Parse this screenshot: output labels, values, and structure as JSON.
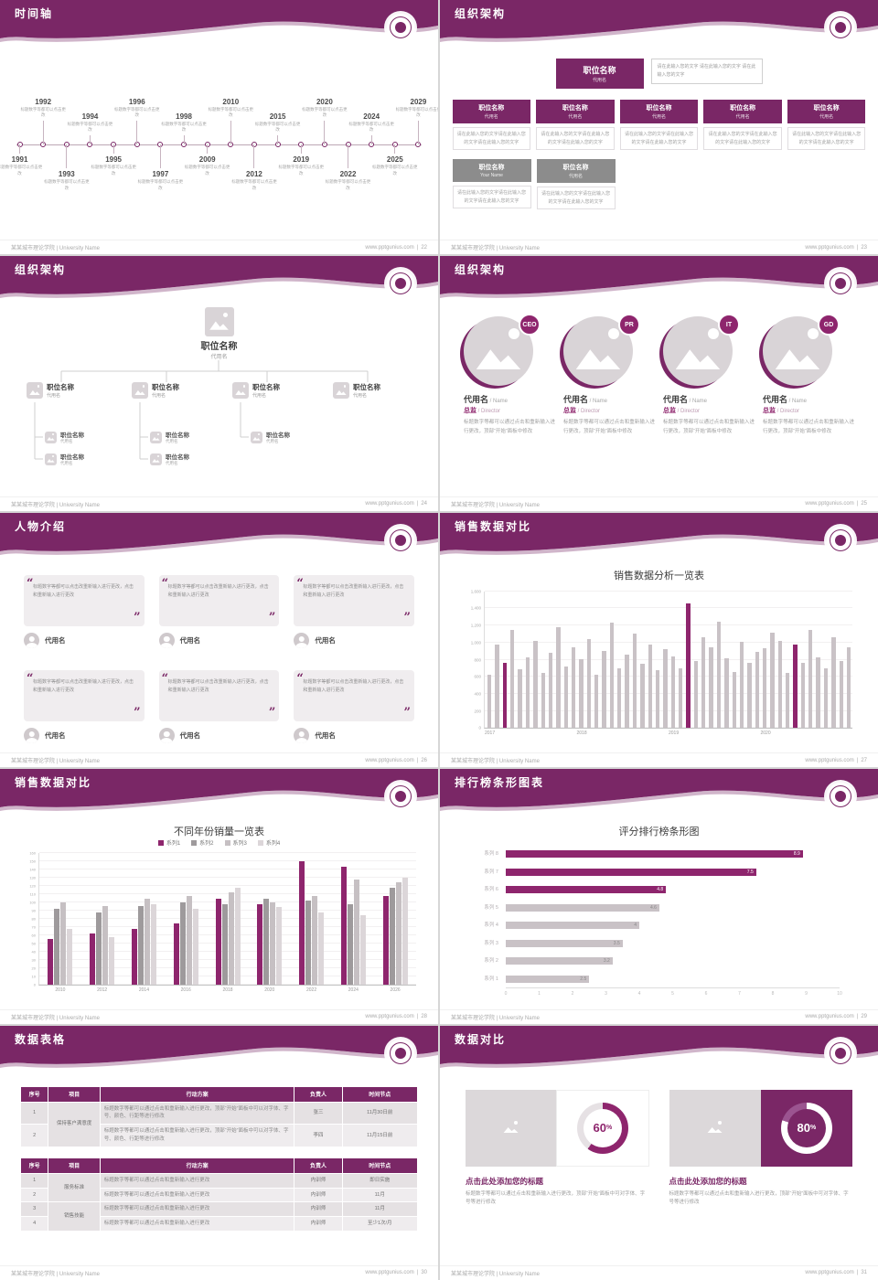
{
  "footer": {
    "org": "某某城市理论学院 | University Name",
    "site": "www.pptgunius.com"
  },
  "colors": {
    "primary": "#7A2766",
    "accent": "#8E256D",
    "bar_gray": "#C9C2C6"
  },
  "slides": {
    "timeline": {
      "title": "时间轴",
      "page": "22",
      "caption": "标题数字等都可以点击更改",
      "items": [
        {
          "year": "1991",
          "side": "bottom",
          "offset": "near"
        },
        {
          "year": "1992",
          "side": "top",
          "offset": "far"
        },
        {
          "year": "1993",
          "side": "bottom",
          "offset": "far"
        },
        {
          "year": "1994",
          "side": "top",
          "offset": "near"
        },
        {
          "year": "1995",
          "side": "bottom",
          "offset": "near"
        },
        {
          "year": "1996",
          "side": "top",
          "offset": "far"
        },
        {
          "year": "1997",
          "side": "bottom",
          "offset": "far"
        },
        {
          "year": "1998",
          "side": "top",
          "offset": "near"
        },
        {
          "year": "2009",
          "side": "bottom",
          "offset": "near"
        },
        {
          "year": "2010",
          "side": "top",
          "offset": "far"
        },
        {
          "year": "2012",
          "side": "bottom",
          "offset": "far"
        },
        {
          "year": "2015",
          "side": "top",
          "offset": "near"
        },
        {
          "year": "2019",
          "side": "bottom",
          "offset": "near"
        },
        {
          "year": "2020",
          "side": "top",
          "offset": "far"
        },
        {
          "year": "2022",
          "side": "bottom",
          "offset": "far"
        },
        {
          "year": "2024",
          "side": "top",
          "offset": "near"
        },
        {
          "year": "2025",
          "side": "bottom",
          "offset": "near"
        },
        {
          "year": "2029",
          "side": "top",
          "offset": "far"
        }
      ]
    },
    "org_boxes": {
      "title": "组织架构",
      "page": "23",
      "top": {
        "title": "职位名称",
        "sub": "代用名"
      },
      "note": "请在此输入您的文字 请在此输入您的文字 请在此输入您的文字",
      "desc": "请在此输入您的文字请在此输入您的文字请在此输入您的文字",
      "level2": [
        {
          "title": "职位名称",
          "sub": "代用名"
        },
        {
          "title": "职位名称",
          "sub": "代用名"
        },
        {
          "title": "职位名称",
          "sub": "代用名"
        },
        {
          "title": "职位名称",
          "sub": "代用名"
        },
        {
          "title": "职位名称",
          "sub": "代用名"
        }
      ],
      "level3": [
        {
          "title": "职位名称",
          "sub": "Your Name"
        },
        {
          "title": "职位名称",
          "sub": "代用名"
        }
      ]
    },
    "org_tree": {
      "title": "组织架构",
      "page": "24",
      "root": {
        "title": "职位名称",
        "sub": "代用名"
      },
      "children": [
        {
          "title": "职位名称",
          "sub": "代用名",
          "grandchildren": [
            {
              "title": "职位名称",
              "sub": "代用名"
            },
            {
              "title": "职位名称",
              "sub": "代用名"
            }
          ]
        },
        {
          "title": "职位名称",
          "sub": "代用名",
          "grandchildren": [
            {
              "title": "职位名称",
              "sub": "代用名"
            },
            {
              "title": "职位名称",
              "sub": "代用名"
            }
          ]
        },
        {
          "title": "职位名称",
          "sub": "代用名",
          "grandchildren": [
            {
              "title": "职位名称",
              "sub": "代用名"
            }
          ]
        },
        {
          "title": "职位名称",
          "sub": "代用名",
          "grandchildren": []
        }
      ]
    },
    "org_profiles": {
      "title": "组织架构",
      "page": "25",
      "caption": "标题数字等都可以通过点击和重新输入进行更改，顶部“开始”面板中修改",
      "people": [
        {
          "badge": "CEO",
          "name": "代用名",
          "name_en": "Name",
          "role": "总监",
          "role_en": "Director"
        },
        {
          "badge": "PR",
          "name": "代用名",
          "name_en": "Name",
          "role": "总监",
          "role_en": "Director"
        },
        {
          "badge": "IT",
          "name": "代用名",
          "name_en": "Name",
          "role": "总监",
          "role_en": "Director"
        },
        {
          "badge": "GD",
          "name": "代用名",
          "name_en": "Name",
          "role": "总监",
          "role_en": "Director"
        }
      ]
    },
    "people_intro": {
      "title": "人物介绍",
      "page": "26",
      "quote": "标题数字等都可以点击改重新输入进行更改，点击和重新输入进行更改",
      "people": [
        {
          "name": "代用名"
        },
        {
          "name": "代用名"
        },
        {
          "name": "代用名"
        },
        {
          "name": "代用名"
        },
        {
          "name": "代用名"
        },
        {
          "name": "代用名"
        }
      ]
    },
    "sales_trend": {
      "title": "销售数据对比",
      "page": "27"
    },
    "sales_yearly": {
      "title": "销售数据对比",
      "page": "28"
    },
    "ranking": {
      "title": "排行榜条形图表",
      "page": "29"
    },
    "data_table": {
      "title": "数据表格",
      "page": "30",
      "tables": [
        {
          "headers": [
            "序号",
            "项目",
            "行动方案",
            "负责人",
            "时间节点"
          ],
          "col_widths": [
            "7%",
            "13%",
            "49%",
            "12%",
            "19%"
          ],
          "rows": [
            [
              {
                "t": "1"
              },
              {
                "t": "保持客户满意度",
                "rs": 2
              },
              {
                "t": "标题数字等都可以通过点击和重新输入进行更改，顶部“开始”面板中可以对字体、字号、颜色、行距等进行修改",
                "align": "left"
              },
              {
                "t": "张三"
              },
              {
                "t": "11月30日前"
              }
            ],
            [
              {
                "t": "2"
              },
              {
                "t": "标题数字等都可以通过点击和重新输入进行更改，顶部“开始”面板中可以对字体、字号、颜色、行距等进行修改",
                "align": "left"
              },
              {
                "t": "李四"
              },
              {
                "t": "11月15日前"
              }
            ]
          ]
        },
        {
          "headers": [
            "序号",
            "项目",
            "行动方案",
            "负责人",
            "时间节点"
          ],
          "col_widths": [
            "7%",
            "13%",
            "49%",
            "12%",
            "19%"
          ],
          "rows": [
            [
              {
                "t": "1"
              },
              {
                "t": "服务标准",
                "rs": 2
              },
              {
                "t": "标题数字等都可以通过点击和重新输入进行更改",
                "align": "left"
              },
              {
                "t": "内训师"
              },
              {
                "t": "即日实施"
              }
            ],
            [
              {
                "t": "2"
              },
              {
                "t": "标题数字等都可以通过点击和重新输入进行更改",
                "align": "left"
              },
              {
                "t": "内训师"
              },
              {
                "t": "11月"
              }
            ],
            [
              {
                "t": "3"
              },
              {
                "t": "销售技能",
                "rs": 2
              },
              {
                "t": "标题数字等都可以通过点击和重新输入进行更改",
                "align": "left"
              },
              {
                "t": "内训师"
              },
              {
                "t": "11月"
              }
            ],
            [
              {
                "t": "4"
              },
              {
                "t": "标题数字等都可以通过点击和重新输入进行更改",
                "align": "left"
              },
              {
                "t": "内训师"
              },
              {
                "t": "至少1次/月"
              }
            ]
          ]
        }
      ]
    },
    "data_compare": {
      "title": "数据对比",
      "page": "31",
      "cards": [
        {
          "percent": 60,
          "unit": "%",
          "heading": "点击此处添加您的标题",
          "caption": "标题数字等都可以通过点击和重新输入进行更改，顶部“开始”面板中可对字体、字号等进行修改",
          "accent": "#8E256D",
          "track": "#E6E1E4",
          "hole": "#FFFFFF",
          "label_color": "#8E256D",
          "area_bg": "#FFFFFF"
        },
        {
          "percent": 80,
          "unit": "%",
          "heading": "点击此处添加您的标题",
          "caption": "标题数字等都可以通过点击和重新输入进行更改，顶部“开始”面板中可对字体、字号等进行修改",
          "accent": "#FFFFFF",
          "track": "#A express",
          "hole": "#7A2766",
          "label_color": "#FFFFFF",
          "area_bg": "#7A2766"
        }
      ]
    }
  },
  "chart_data": [
    {
      "id": "sales_trend",
      "type": "bar",
      "title": "销售数据分析一览表",
      "x_groups": [
        "2017",
        "2018",
        "2019",
        "2020"
      ],
      "bars_per_group": 12,
      "values": [
        620,
        980,
        760,
        1150,
        690,
        830,
        1020,
        640,
        880,
        1180,
        720,
        940,
        810,
        1040,
        620,
        900,
        1230,
        700,
        860,
        1100,
        750,
        980,
        680,
        920,
        840,
        700,
        1460,
        780,
        1060,
        950,
        1240,
        820,
        660,
        1010,
        760,
        890,
        930,
        1120,
        1020,
        640,
        980,
        760,
        1150,
        830,
        700,
        1060,
        780,
        940
      ],
      "highlight_indices": [
        2,
        26,
        40
      ],
      "bar_color": "#C9C2C6",
      "highlight_color": "#8E256D",
      "ylim": [
        0,
        1600
      ],
      "ytick_step": 200,
      "grid": true,
      "legend": "none"
    },
    {
      "id": "sales_yearly",
      "type": "bar",
      "title": "不同年份销量一览表",
      "categories": [
        "2010",
        "2012",
        "2014",
        "2016",
        "2018",
        "2020",
        "2022",
        "2024",
        "2026"
      ],
      "series": [
        {
          "name": "系列1",
          "color": "#8E256D",
          "values": [
            55,
            62,
            68,
            74,
            104,
            98,
            150,
            144,
            108
          ]
        },
        {
          "name": "系列2",
          "color": "#9E9A9C",
          "values": [
            92,
            88,
            96,
            100,
            98,
            104,
            102,
            98,
            118
          ]
        },
        {
          "name": "系列3",
          "color": "#C6C0C3",
          "values": [
            100,
            95,
            104,
            108,
            112,
            100,
            108,
            128,
            124
          ]
        },
        {
          "name": "系列4",
          "color": "#DCD6D9",
          "values": [
            68,
            58,
            98,
            92,
            118,
            94,
            88,
            84,
            130
          ]
        }
      ],
      "ylim": [
        0,
        160
      ],
      "ytick_step": 10,
      "grid": true,
      "legend": "top"
    },
    {
      "id": "ranking",
      "type": "bar-horizontal",
      "title": "评分排行榜条形图",
      "categories": [
        "系列 8",
        "系列 7",
        "系列 6",
        "系列 5",
        "系列 4",
        "系列 3",
        "系列 2",
        "系列 1"
      ],
      "values": [
        8.9,
        7.5,
        4.8,
        4.6,
        4,
        3.5,
        3.2,
        2.5
      ],
      "bar_colors": [
        "#8E256D",
        "#8E256D",
        "#8E256D",
        "#C9C2C6",
        "#C9C2C6",
        "#C9C2C6",
        "#C9C2C6",
        "#C9C2C6"
      ],
      "value_label_colors": [
        "#FFFFFF",
        "#FFFFFF",
        "#FFFFFF",
        "#8a8a8a",
        "#8a8a8a",
        "#8a8a8a",
        "#8a8a8a",
        "#8a8a8a"
      ],
      "xlim": [
        0,
        10
      ],
      "xtick_step": 1,
      "legend": "none"
    }
  ]
}
